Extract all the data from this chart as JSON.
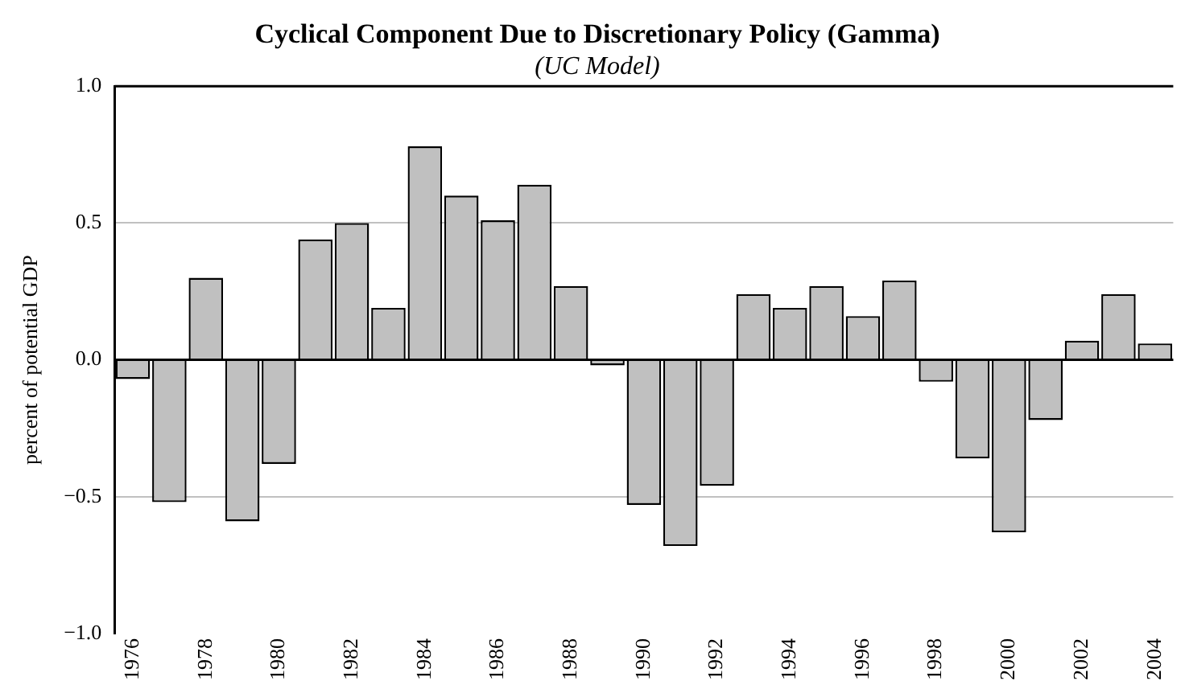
{
  "chart_data": {
    "type": "bar",
    "title": "Cyclical Component Due to Discretionary Policy (Gamma)",
    "subtitle": "(UC Model)",
    "ylabel": "percent of potential GDP",
    "categories": [
      "1976",
      null,
      "1978",
      null,
      "1980",
      null,
      "1982",
      null,
      "1984",
      null,
      "1986",
      null,
      "1988",
      null,
      "1990",
      null,
      "1992",
      null,
      "1994",
      null,
      "1996",
      null,
      "1998",
      null,
      "2000",
      null,
      "2002",
      null,
      "2004"
    ],
    "values": [
      -0.07,
      -0.52,
      0.3,
      -0.59,
      -0.38,
      0.44,
      0.5,
      0.19,
      0.78,
      0.6,
      0.51,
      0.64,
      0.27,
      -0.02,
      -0.53,
      -0.68,
      -0.46,
      0.24,
      0.19,
      0.27,
      0.16,
      0.29,
      -0.08,
      -0.36,
      -0.63,
      -0.22,
      0.07,
      0.24,
      0.06
    ],
    "color": "#c0c0c0",
    "ylim": [
      -1.0,
      1.0
    ],
    "yticks": [
      {
        "value": -1.0,
        "label": "−1.0"
      },
      {
        "value": -0.5,
        "label": "−0.5"
      },
      {
        "value": 0,
        "label": "0.0"
      },
      {
        "value": 0.5,
        "label": "0.5"
      },
      {
        "value": 1.0,
        "label": "1.0"
      }
    ],
    "ref_lines": [
      {
        "axis": "y",
        "value": 0,
        "color": "#000000"
      }
    ],
    "grid": "y",
    "legend": false
  }
}
